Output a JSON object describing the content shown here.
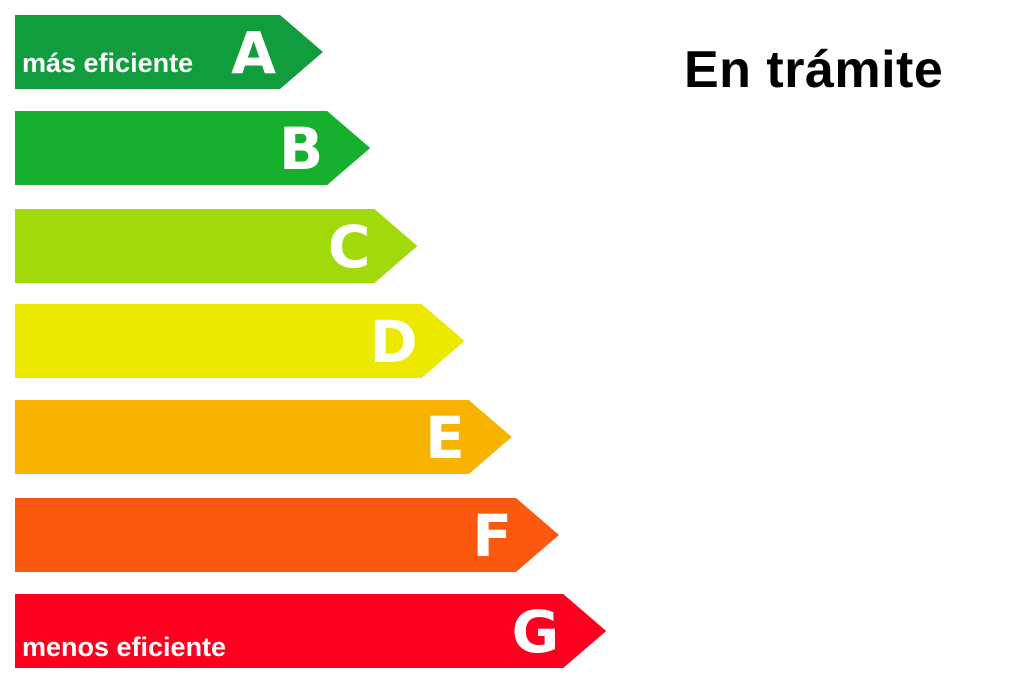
{
  "status": "En trámite",
  "classes": [
    {
      "letter": "A",
      "color": "#119d3e",
      "label": "más eficiente"
    },
    {
      "letter": "B",
      "color": "#16b02e",
      "label": ""
    },
    {
      "letter": "C",
      "color": "#a2d90a",
      "label": ""
    },
    {
      "letter": "D",
      "color": "#ece800",
      "label": ""
    },
    {
      "letter": "E",
      "color": "#f8b200",
      "label": ""
    },
    {
      "letter": "F",
      "color": "#fb5810",
      "label": ""
    },
    {
      "letter": "G",
      "color": "#fb001f",
      "label": "menos eficiente"
    }
  ]
}
